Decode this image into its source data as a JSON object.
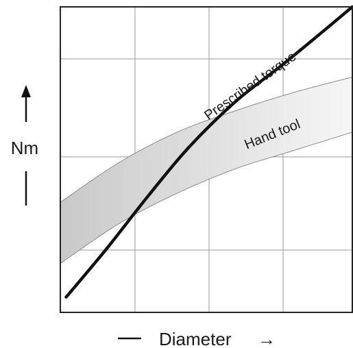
{
  "chart_data": {
    "type": "line",
    "title": "",
    "xlabel": "Diameter",
    "xlabel_arrow": "→",
    "ylabel": "Nm",
    "xlim": [
      0,
      5
    ],
    "ylim": [
      0,
      5
    ],
    "grid": true,
    "series": [
      {
        "name": "Prescribed torque",
        "x": [
          0.1,
          0.8,
          1.5,
          2.2,
          3.0,
          3.8,
          4.5,
          5.0
        ],
        "y": [
          0.25,
          1.05,
          1.9,
          2.7,
          3.45,
          4.05,
          4.6,
          5.0
        ]
      }
    ],
    "bands": [
      {
        "name": "Hand tool",
        "x": [
          0,
          1.0,
          2.0,
          3.0,
          4.0,
          5.0
        ],
        "lower": [
          0.8,
          1.45,
          1.95,
          2.35,
          2.65,
          2.95
        ],
        "upper": [
          1.8,
          2.45,
          2.95,
          3.3,
          3.6,
          3.85
        ]
      }
    ],
    "annotations": [
      {
        "text": "Prescribed torque",
        "series": "Prescribed torque"
      },
      {
        "text": "Hand tool",
        "series": "Hand tool"
      }
    ],
    "colors": {
      "curve": "#111111",
      "band_dark": "#c9c9c9",
      "band_light": "#f6f6f6",
      "band_edge": "#8a8a8a",
      "grid": "#9a9a9a",
      "frame": "#222222"
    }
  }
}
